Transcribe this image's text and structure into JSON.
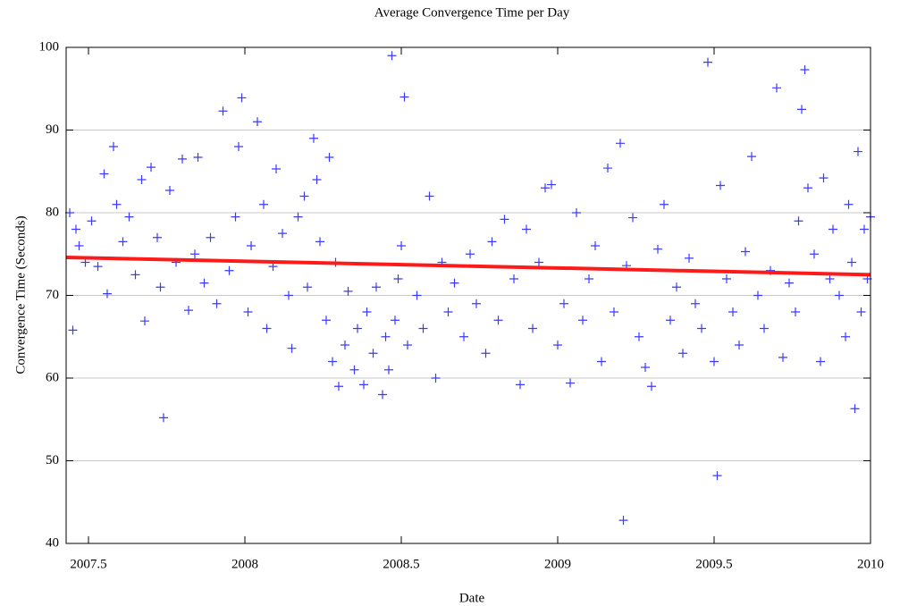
{
  "chart_data": {
    "type": "scatter",
    "title": "Average Convergence Time per Day",
    "xlabel": "Date",
    "ylabel": "Convergence Time (Seconds)",
    "xlim": [
      2007.4286,
      2010
    ],
    "ylim": [
      40,
      100
    ],
    "xticks": [
      2007.5,
      2008,
      2008.5,
      2009,
      2009.5,
      2010
    ],
    "yticks": [
      40,
      50,
      60,
      70,
      80,
      90,
      100
    ],
    "grid": true,
    "color": "#3a3aff",
    "x": [
      2007.44,
      2007.45,
      2007.46,
      2007.47,
      2007.49,
      2007.51,
      2007.53,
      2007.55,
      2007.56,
      2007.58,
      2007.59,
      2007.61,
      2007.63,
      2007.65,
      2007.67,
      2007.68,
      2007.7,
      2007.72,
      2007.73,
      2007.74,
      2007.76,
      2007.78,
      2007.8,
      2007.82,
      2007.84,
      2007.85,
      2007.87,
      2007.89,
      2007.91,
      2007.93,
      2007.95,
      2007.97,
      2007.98,
      2007.99,
      2008.01,
      2008.02,
      2008.04,
      2008.06,
      2008.07,
      2008.09,
      2008.1,
      2008.12,
      2008.14,
      2008.15,
      2008.17,
      2008.19,
      2008.2,
      2008.22,
      2008.23,
      2008.24,
      2008.26,
      2008.27,
      2008.28,
      2008.29,
      2008.3,
      2008.32,
      2008.33,
      2008.35,
      2008.36,
      2008.38,
      2008.39,
      2008.41,
      2008.42,
      2008.44,
      2008.45,
      2008.46,
      2008.47,
      2008.48,
      2008.49,
      2008.5,
      2008.51,
      2008.52,
      2008.55,
      2008.57,
      2008.59,
      2008.61,
      2008.63,
      2008.65,
      2008.67,
      2008.7,
      2008.72,
      2008.74,
      2008.77,
      2008.79,
      2008.81,
      2008.83,
      2008.86,
      2008.88,
      2008.9,
      2008.92,
      2008.94,
      2008.96,
      2008.98,
      2009.0,
      2009.02,
      2009.04,
      2009.06,
      2009.08,
      2009.1,
      2009.12,
      2009.14,
      2009.16,
      2009.18,
      2009.2,
      2009.21,
      2009.22,
      2009.24,
      2009.26,
      2009.28,
      2009.3,
      2009.32,
      2009.34,
      2009.36,
      2009.38,
      2009.4,
      2009.42,
      2009.44,
      2009.46,
      2009.48,
      2009.5,
      2009.51,
      2009.52,
      2009.54,
      2009.56,
      2009.58,
      2009.6,
      2009.62,
      2009.64,
      2009.66,
      2009.68,
      2009.7,
      2009.72,
      2009.74,
      2009.76,
      2009.77,
      2009.78,
      2009.79,
      2009.8,
      2009.82,
      2009.84,
      2009.85,
      2009.87,
      2009.88,
      2009.9,
      2009.92,
      2009.93,
      2009.94,
      2009.95,
      2009.96,
      2009.97,
      2009.98,
      2009.99,
      2010.0
    ],
    "values": [
      80,
      65.8,
      78,
      76,
      74,
      79,
      73.5,
      84.7,
      70.2,
      88,
      81,
      76.5,
      79.5,
      72.5,
      84,
      66.9,
      85.5,
      77,
      71,
      55.2,
      82.7,
      74,
      86.5,
      68.2,
      75,
      86.7,
      71.5,
      77,
      69,
      92.3,
      73,
      79.5,
      88,
      93.9,
      68,
      76,
      91,
      81,
      66,
      73.5,
      85.3,
      77.5,
      70,
      63.6,
      79.5,
      82,
      71,
      89,
      84,
      76.5,
      67,
      86.7,
      62,
      74,
      59,
      64,
      70.5,
      61,
      66,
      59.2,
      68,
      63,
      71,
      58,
      65,
      61,
      99,
      67,
      72,
      76,
      94,
      64,
      70,
      66,
      82,
      60,
      74,
      68,
      71.5,
      65,
      75,
      69,
      63,
      76.5,
      67,
      79.2,
      72,
      59.2,
      78,
      66,
      74,
      83,
      83.4,
      64,
      69,
      59.4,
      80,
      67,
      72,
      76,
      62,
      85.4,
      68,
      88.4,
      42.8,
      73.6,
      79.4,
      65,
      61.3,
      59,
      75.6,
      81,
      67,
      71,
      63,
      74.5,
      69,
      66,
      98.2,
      62,
      48.2,
      83.3,
      72,
      68,
      64,
      75.3,
      86.8,
      70,
      66,
      73,
      95.1,
      62.5,
      71.5,
      68,
      79,
      92.5,
      97.3,
      83,
      75,
      62,
      84.2,
      72,
      78,
      70,
      65,
      81,
      74,
      56.3,
      87.4,
      68,
      78,
      72,
      79.5
    ],
    "trend": {
      "color": "#ff1a1a",
      "x": [
        2007.4286,
        2010
      ],
      "values": [
        74.6,
        72.5
      ]
    }
  }
}
